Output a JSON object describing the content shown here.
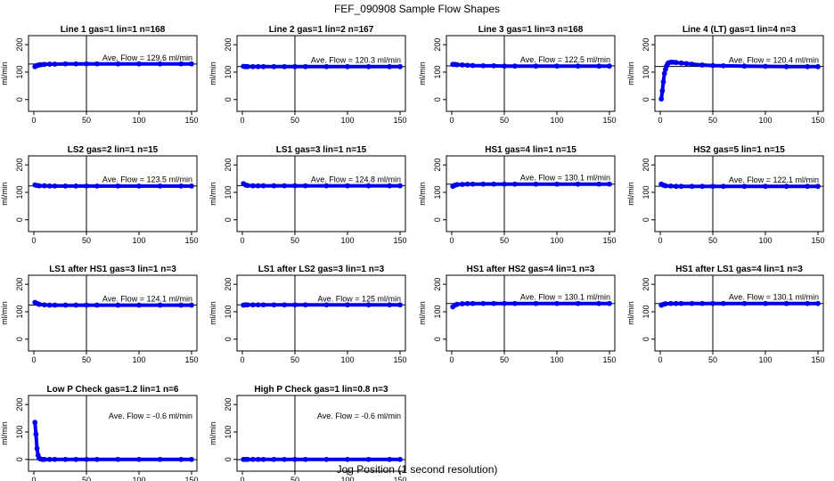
{
  "page": {
    "title": "FEF_090908  Sample Flow Shapes",
    "xlabel": "Jog Position (1 second resolution)"
  },
  "style": {
    "point_color": "#0000ee",
    "axis_color": "#000000"
  },
  "chart_data": [
    {
      "type": "scatter",
      "title": "Line 1 gas=1 lin=1 n=168",
      "ylabel": "ml/min",
      "xlim": [
        0,
        150
      ],
      "ylim": [
        -30,
        220
      ],
      "xticks": [
        0,
        50,
        100,
        150
      ],
      "yticks": [
        0,
        100,
        200
      ],
      "annotation": "Ave. Flow =  129.6  ml/min",
      "vline_x": 50,
      "hline_y": 129.6,
      "x": [
        1,
        3,
        5,
        7,
        10,
        15,
        20,
        30,
        40,
        50,
        60,
        80,
        100,
        120,
        140,
        150
      ],
      "y": [
        120,
        124,
        126,
        127,
        128,
        129,
        129,
        130,
        130,
        130,
        130,
        130,
        130,
        130,
        130,
        130
      ]
    },
    {
      "type": "scatter",
      "title": "Line 2 gas=1 lin=2 n=167",
      "ylabel": "ml/min",
      "xlim": [
        0,
        150
      ],
      "ylim": [
        -30,
        220
      ],
      "xticks": [
        0,
        50,
        100,
        150
      ],
      "yticks": [
        0,
        100,
        200
      ],
      "annotation": "Ave. Flow =  120.3  ml/min",
      "vline_x": 50,
      "hline_y": 120.3,
      "x": [
        1,
        3,
        5,
        10,
        15,
        20,
        30,
        40,
        50,
        60,
        80,
        100,
        120,
        140,
        150
      ],
      "y": [
        121,
        120,
        120,
        120,
        120,
        120,
        120,
        120,
        120,
        120,
        120,
        120,
        120,
        120,
        120
      ]
    },
    {
      "type": "scatter",
      "title": "Line 3 gas=1 lin=3 n=168",
      "ylabel": "ml/min",
      "xlim": [
        0,
        150
      ],
      "ylim": [
        -30,
        220
      ],
      "xticks": [
        0,
        50,
        100,
        150
      ],
      "yticks": [
        0,
        100,
        200
      ],
      "annotation": "Ave. Flow =  122.5  ml/min",
      "vline_x": 50,
      "hline_y": 122.5,
      "x": [
        1,
        3,
        5,
        10,
        15,
        20,
        30,
        40,
        50,
        60,
        80,
        100,
        120,
        140,
        150
      ],
      "y": [
        128,
        128,
        127,
        126,
        125,
        124,
        123,
        123,
        122,
        122,
        122,
        122,
        122,
        122,
        122
      ]
    },
    {
      "type": "scatter",
      "title": "Line 4 (LT) gas=1 lin=4 n=3",
      "ylabel": "ml/min",
      "xlim": [
        0,
        150
      ],
      "ylim": [
        -30,
        220
      ],
      "xticks": [
        0,
        50,
        100,
        150
      ],
      "yticks": [
        0,
        100,
        200
      ],
      "annotation": "Ave. Flow =  120.4  ml/min",
      "vline_x": 50,
      "hline_y": 120.4,
      "x": [
        1,
        2,
        3,
        4,
        5,
        6,
        7,
        8,
        10,
        12,
        15,
        20,
        25,
        30,
        40,
        50,
        60,
        80,
        100,
        120,
        140,
        150
      ],
      "y": [
        2,
        32,
        65,
        95,
        110,
        122,
        130,
        134,
        136,
        136,
        135,
        133,
        131,
        129,
        126,
        124,
        123,
        122,
        121,
        120,
        120,
        120
      ]
    },
    {
      "type": "scatter",
      "title": "LS2 gas=2 lin=1 n=15",
      "ylabel": "ml/min",
      "xlim": [
        0,
        150
      ],
      "ylim": [
        -30,
        220
      ],
      "xticks": [
        0,
        50,
        100,
        150
      ],
      "yticks": [
        0,
        100,
        200
      ],
      "annotation": "Ave. Flow =  123.5  ml/min",
      "vline_x": 50,
      "hline_y": 123.5,
      "x": [
        1,
        3,
        5,
        10,
        15,
        20,
        30,
        40,
        50,
        60,
        80,
        100,
        120,
        140,
        150
      ],
      "y": [
        127,
        125,
        124,
        124,
        123,
        123,
        123,
        123,
        123,
        123,
        123,
        123,
        123,
        123,
        123
      ]
    },
    {
      "type": "scatter",
      "title": "LS1 gas=3 lin=1 n=15",
      "ylabel": "ml/min",
      "xlim": [
        0,
        150
      ],
      "ylim": [
        -30,
        220
      ],
      "xticks": [
        0,
        50,
        100,
        150
      ],
      "yticks": [
        0,
        100,
        200
      ],
      "annotation": "Ave. Flow =  124.8  ml/min",
      "vline_x": 50,
      "hline_y": 124.8,
      "x": [
        1,
        3,
        5,
        10,
        15,
        20,
        30,
        40,
        50,
        60,
        80,
        100,
        120,
        140,
        150
      ],
      "y": [
        132,
        127,
        125,
        124,
        124,
        124,
        124,
        124,
        124,
        124,
        124,
        124,
        124,
        124,
        124
      ]
    },
    {
      "type": "scatter",
      "title": "HS1 gas=4 lin=1 n=15",
      "ylabel": "ml/min",
      "xlim": [
        0,
        150
      ],
      "ylim": [
        -30,
        220
      ],
      "xticks": [
        0,
        50,
        100,
        150
      ],
      "yticks": [
        0,
        100,
        200
      ],
      "annotation": "Ave. Flow =  130.1  ml/min",
      "vline_x": 50,
      "hline_y": 130.1,
      "x": [
        1,
        3,
        5,
        10,
        15,
        20,
        30,
        40,
        50,
        60,
        80,
        100,
        120,
        140,
        150
      ],
      "y": [
        122,
        126,
        128,
        129,
        130,
        130,
        130,
        130,
        130,
        130,
        130,
        130,
        130,
        130,
        130
      ]
    },
    {
      "type": "scatter",
      "title": "HS2 gas=5 lin=1 n=15",
      "ylabel": "ml/min",
      "xlim": [
        0,
        150
      ],
      "ylim": [
        -30,
        220
      ],
      "xticks": [
        0,
        50,
        100,
        150
      ],
      "yticks": [
        0,
        100,
        200
      ],
      "annotation": "Ave. Flow =  122.1  ml/min",
      "vline_x": 50,
      "hline_y": 122.1,
      "x": [
        1,
        3,
        5,
        10,
        15,
        20,
        30,
        40,
        50,
        60,
        80,
        100,
        120,
        140,
        150
      ],
      "y": [
        130,
        126,
        124,
        123,
        122,
        122,
        122,
        122,
        122,
        122,
        122,
        122,
        122,
        122,
        122
      ]
    },
    {
      "type": "scatter",
      "title": "LS1 after HS1 gas=3 lin=1 n=3",
      "ylabel": "ml/min",
      "xlim": [
        0,
        150
      ],
      "ylim": [
        -30,
        220
      ],
      "xticks": [
        0,
        50,
        100,
        150
      ],
      "yticks": [
        0,
        100,
        200
      ],
      "annotation": "Ave. Flow =  124.1  ml/min",
      "vline_x": 50,
      "hline_y": 124.1,
      "x": [
        1,
        3,
        5,
        10,
        15,
        20,
        30,
        40,
        50,
        60,
        80,
        100,
        120,
        140,
        150
      ],
      "y": [
        134,
        130,
        127,
        125,
        124,
        124,
        124,
        124,
        124,
        124,
        124,
        124,
        124,
        124,
        124
      ]
    },
    {
      "type": "scatter",
      "title": "LS1 after LS2 gas=3 lin=1 n=3",
      "ylabel": "ml/min",
      "xlim": [
        0,
        150
      ],
      "ylim": [
        -30,
        220
      ],
      "xticks": [
        0,
        50,
        100,
        150
      ],
      "yticks": [
        0,
        100,
        200
      ],
      "annotation": "Ave. Flow =  125  ml/min",
      "vline_x": 50,
      "hline_y": 125,
      "x": [
        1,
        3,
        5,
        10,
        15,
        20,
        30,
        40,
        50,
        60,
        80,
        100,
        120,
        140,
        150
      ],
      "y": [
        124,
        125,
        125,
        125,
        125,
        125,
        125,
        125,
        125,
        125,
        125,
        125,
        125,
        125,
        125
      ]
    },
    {
      "type": "scatter",
      "title": "HS1 after HS2 gas=4 lin=1 n=3",
      "ylabel": "ml/min",
      "xlim": [
        0,
        150
      ],
      "ylim": [
        -30,
        220
      ],
      "xticks": [
        0,
        50,
        100,
        150
      ],
      "yticks": [
        0,
        100,
        200
      ],
      "annotation": "Ave. Flow =  130.1  ml/min",
      "vline_x": 50,
      "hline_y": 130.1,
      "x": [
        1,
        3,
        5,
        10,
        15,
        20,
        30,
        40,
        50,
        60,
        80,
        100,
        120,
        140,
        150
      ],
      "y": [
        118,
        124,
        127,
        129,
        130,
        130,
        130,
        130,
        130,
        130,
        130,
        130,
        130,
        130,
        130
      ]
    },
    {
      "type": "scatter",
      "title": "HS1 after LS1 gas=4 lin=1 n=3",
      "ylabel": "ml/min",
      "xlim": [
        0,
        150
      ],
      "ylim": [
        -30,
        220
      ],
      "xticks": [
        0,
        50,
        100,
        150
      ],
      "yticks": [
        0,
        100,
        200
      ],
      "annotation": "Ave. Flow =  130.1  ml/min",
      "vline_x": 50,
      "hline_y": 130.1,
      "x": [
        1,
        3,
        5,
        10,
        15,
        20,
        30,
        40,
        50,
        60,
        80,
        100,
        120,
        140,
        150
      ],
      "y": [
        124,
        127,
        129,
        130,
        130,
        130,
        130,
        130,
        130,
        130,
        130,
        130,
        130,
        130,
        130
      ]
    },
    {
      "type": "scatter",
      "title": "Low P Check gas=1.2 lin=1 n=6",
      "ylabel": "ml/min",
      "xlim": [
        0,
        150
      ],
      "ylim": [
        -30,
        220
      ],
      "xticks": [
        0,
        50,
        100,
        150
      ],
      "yticks": [
        0,
        100,
        200
      ],
      "annotation": "Ave. Flow =  -0.6  ml/min",
      "vline_x": 50,
      "hline_y": -0.6,
      "x": [
        1,
        2,
        3,
        4,
        5,
        6,
        8,
        10,
        15,
        20,
        30,
        40,
        50,
        60,
        80,
        100,
        120,
        140,
        150
      ],
      "y": [
        135,
        92,
        40,
        15,
        5,
        2,
        0,
        0,
        0,
        0,
        0,
        0,
        0,
        0,
        0,
        0,
        0,
        0,
        0
      ]
    },
    {
      "type": "scatter",
      "title": "High P Check gas=1 lin=0.8 n=3",
      "ylabel": "ml/min",
      "xlim": [
        0,
        150
      ],
      "ylim": [
        -30,
        220
      ],
      "xticks": [
        0,
        50,
        100,
        150
      ],
      "yticks": [
        0,
        100,
        200
      ],
      "annotation": "Ave. Flow =  -0.6  ml/min",
      "vline_x": 50,
      "hline_y": -0.6,
      "x": [
        1,
        3,
        5,
        10,
        15,
        20,
        30,
        40,
        50,
        60,
        80,
        100,
        120,
        140,
        150
      ],
      "y": [
        0,
        0,
        0,
        0,
        0,
        0,
        0,
        0,
        0,
        0,
        0,
        0,
        0,
        0,
        0
      ]
    }
  ]
}
